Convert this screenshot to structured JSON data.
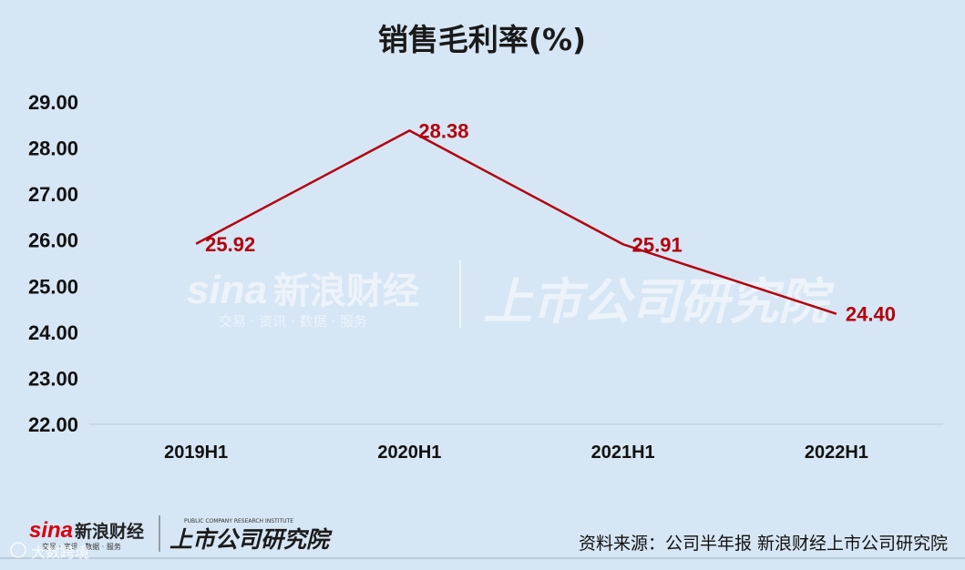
{
  "chart_data": {
    "type": "line",
    "title": "销售毛利率(%)",
    "categories": [
      "2019H1",
      "2020H1",
      "2021H1",
      "2022H1"
    ],
    "values": [
      25.92,
      28.38,
      25.91,
      24.4
    ],
    "value_labels": [
      "25.92",
      "28.38",
      "25.91",
      "24.40"
    ],
    "ylim": [
      22.0,
      29.0
    ],
    "yticks": [
      "22.00",
      "23.00",
      "24.00",
      "25.00",
      "26.00",
      "27.00",
      "28.00",
      "29.00"
    ],
    "grid": false,
    "line_color": "#b3000c"
  },
  "watermark": {
    "brand": "sina",
    "brand_cn": "新浪财经",
    "tagline": "交易 · 资讯 · 数据 · 服务",
    "institute": "上市公司研究院"
  },
  "footer": {
    "logo_brand": "sina",
    "logo_cn": "新浪财经",
    "logo_tagline": "交易 · 资讯 · 数据 · 服务",
    "logo_institute_en": "PUBLIC COMPANY RESEARCH INSTITUTE",
    "logo_institute": "上市公司研究院",
    "source": "资料来源：公司半年报 新浪财经上市公司研究院",
    "corner_mark": "大数跨境"
  },
  "colors": {
    "background": "#d6e6f4",
    "line": "#b3000c",
    "label": "#b3000c"
  }
}
